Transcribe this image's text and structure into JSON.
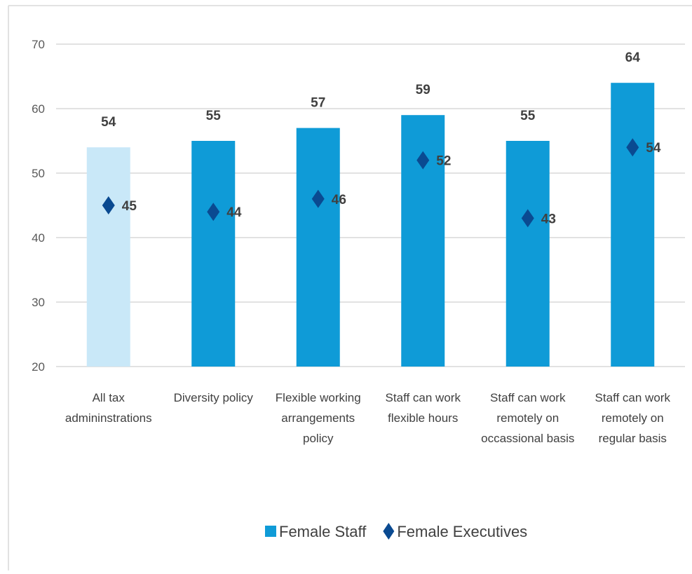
{
  "chart_data": {
    "type": "bar",
    "categories": [
      "All tax admininstrations",
      "Diversity policy",
      "Flexible working arrangements policy",
      "Staff can work flexible hours",
      "Staff can work remotely on occassional basis",
      "Staff can work remotely on regular basis"
    ],
    "series": [
      {
        "name": "Female Staff",
        "type": "bar",
        "color": "#0f9bd7",
        "colors": [
          "#c9e8f8",
          "#0f9bd7",
          "#0f9bd7",
          "#0f9bd7",
          "#0f9bd7",
          "#0f9bd7"
        ],
        "values": [
          54,
          55,
          57,
          59,
          55,
          64
        ]
      },
      {
        "name": "Female Executives",
        "type": "marker",
        "color": "#0a4a91",
        "values": [
          45,
          44,
          46,
          52,
          43,
          54
        ]
      }
    ],
    "ylim": [
      20,
      70
    ],
    "yticks": [
      20,
      30,
      40,
      50,
      60,
      70
    ],
    "grid": true,
    "legend": "bottom"
  }
}
